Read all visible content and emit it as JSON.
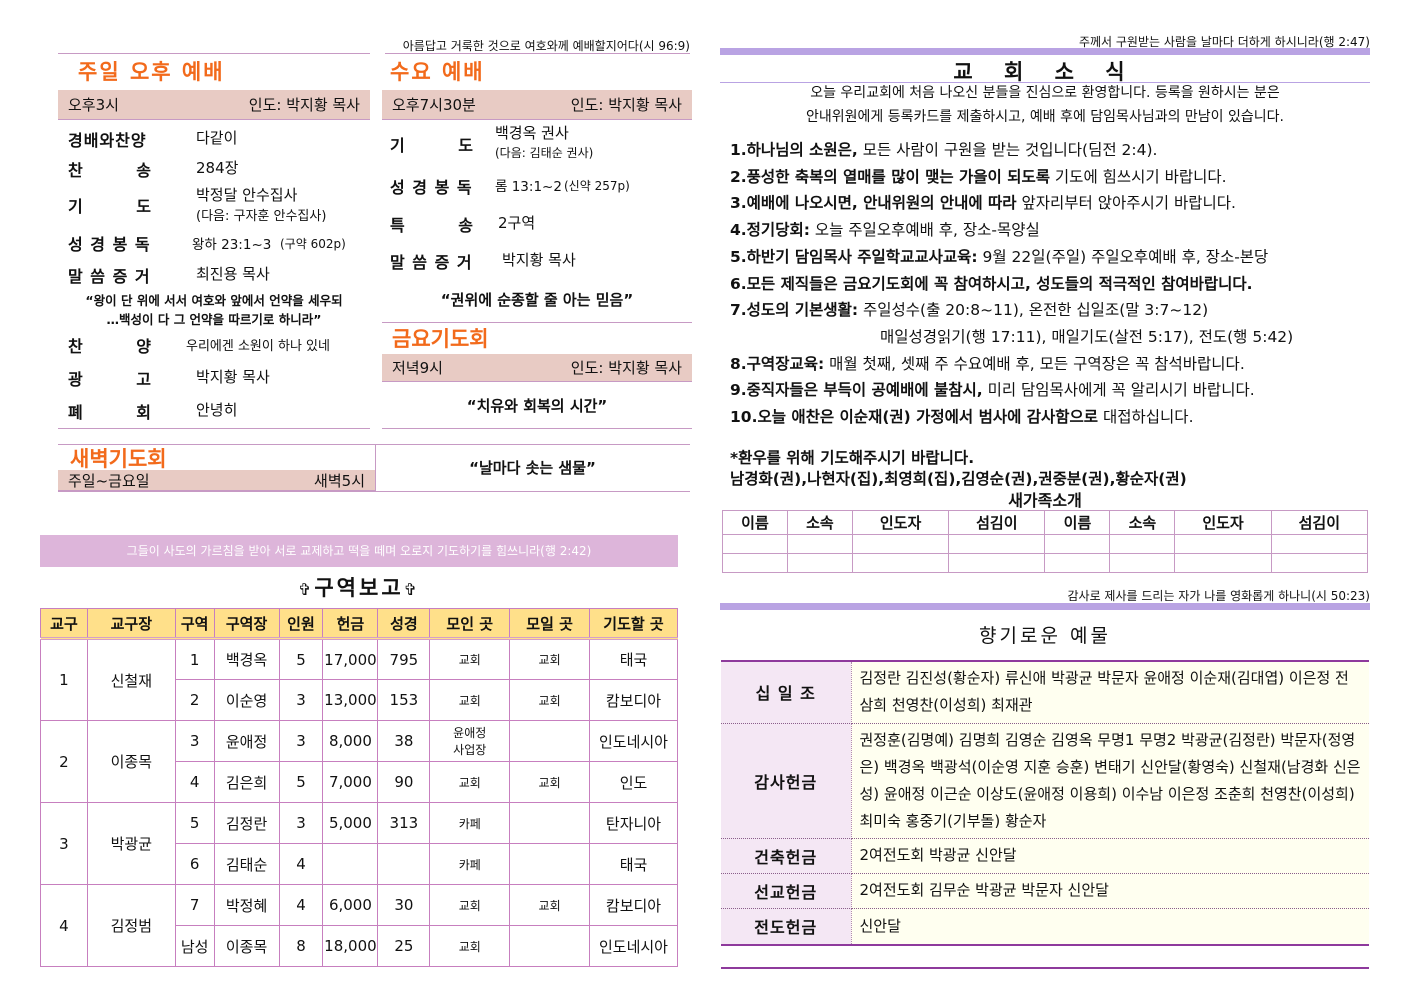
{
  "left": {
    "top_verse": "아름답고 거룩한 것으로 여호와께 예배할지어다(시 96:9)",
    "sunday": {
      "title": "주일 오후 예배",
      "time": "오후3시",
      "leader": "인도: 박지황 목사",
      "rows": [
        {
          "label": "경배와찬양",
          "value": "다같이"
        },
        {
          "label": "찬        송",
          "value": "284장"
        },
        {
          "label": "기        도",
          "value": "박정달 안수집사",
          "sub": "(다음: 구자훈 안수집사)"
        },
        {
          "label": "성 경 봉 독",
          "value": "왕하 23:1~3",
          "sub": "(구약 602p)"
        },
        {
          "label": "말 씀 증 거",
          "value": "최진용 목사"
        },
        {
          "label": "찬        양",
          "value": "우리에겐 소원이 하나 있네"
        },
        {
          "label": "광        고",
          "value": "박지황 목사"
        },
        {
          "label": "폐        회",
          "value": "안녕히"
        }
      ],
      "quote1": "“왕이 단 위에 서서 여호와 앞에서 언약을 세우되",
      "quote2": "…백성이 다 그 언약을 따르기로 하니라”"
    },
    "wednesday": {
      "title": "수요 예배",
      "time": "오후7시30분",
      "leader": "인도: 박지황 목사",
      "rows": [
        {
          "label": "기        도",
          "value": "백경옥 권사",
          "sub": "(다음: 김태순 권사)"
        },
        {
          "label": "성 경 봉 독",
          "value": "롬 13:1~2",
          "sub": "(신약 257p)"
        },
        {
          "label": "특        송",
          "value": "2구역"
        },
        {
          "label": "말 씀 증 거",
          "value": "박지황 목사"
        }
      ],
      "quote": "“권위에 순종할 줄 아는 믿음”"
    },
    "friday": {
      "title": "금요기도회",
      "time": "저녁9시",
      "leader": "인도: 박지황 목사",
      "quote": "“치유와 회복의 시간”"
    },
    "dawn": {
      "title": "새벽기도회",
      "days": "주일~금요일",
      "time": "새벽5시",
      "quote": "“날마다 솟는 샘물”"
    },
    "banner_verse": "그들이 사도의 가르침을 받아 서로 교제하고 떡을 떼며 오로지 기도하기를 힘쓰니라(행 2:42)",
    "cell_report": {
      "title": "구역보고",
      "cross": "✞",
      "headers": [
        "교구",
        "교구장",
        "구역",
        "구역장",
        "인원",
        "헌금",
        "성경",
        "모인 곳",
        "모일 곳",
        "기도할 곳"
      ],
      "groups": [
        {
          "parish": "1",
          "head": "신철재",
          "rows": [
            [
              "1",
              "백경옥",
              "5",
              "17,000",
              "795",
              "교회",
              "교회",
              "태국"
            ],
            [
              "2",
              "이순영",
              "3",
              "13,000",
              "153",
              "교회",
              "교회",
              "캄보디아"
            ]
          ]
        },
        {
          "parish": "2",
          "head": "이종목",
          "rows": [
            [
              "3",
              "윤애정",
              "3",
              "8,000",
              "38",
              "윤애정\n사업장",
              "",
              "인도네시아"
            ],
            [
              "4",
              "김은희",
              "5",
              "7,000",
              "90",
              "교회",
              "교회",
              "인도"
            ]
          ]
        },
        {
          "parish": "3",
          "head": "박광균",
          "rows": [
            [
              "5",
              "김정란",
              "3",
              "5,000",
              "313",
              "카페",
              "",
              "탄자니아"
            ],
            [
              "6",
              "김태순",
              "4",
              "",
              "",
              "카페",
              "",
              "태국"
            ]
          ]
        },
        {
          "parish": "4",
          "head": "김정범",
          "rows": [
            [
              "7",
              "박정혜",
              "4",
              "6,000",
              "30",
              "교회",
              "교회",
              "캄보디아"
            ],
            [
              "남성",
              "이종목",
              "8",
              "18,000",
              "25",
              "교회",
              "",
              "인도네시아"
            ]
          ]
        }
      ]
    }
  },
  "right": {
    "top_verse": "주께서 구원받는 사람을 날마다 더하게 하시니라(행 2:47)",
    "news_title": "교 회 소 식",
    "welcome1": "오늘 우리교회에 처음 나오신 분들을 진심으로 환영합니다. 등록을 원하시는 분은",
    "welcome2": "안내위원에게 등록카드를 제출하시고, 예배 후에 담임목사님과의 만남이 있습니다.",
    "items": [
      {
        "b": "1.하나님의 소원은,",
        "t": " 모든 사람이 구원을 받는 것입니다(딤전 2:4)."
      },
      {
        "b": "2.풍성한 축복의 열매를 많이 맺는 가을이 되도록",
        "t": " 기도에 힘쓰시기 바랍니다."
      },
      {
        "b": "3.예배에 나오시면, 안내위원의 안내에 따라",
        "t": " 앞자리부터 앉아주시기 바랍니다."
      },
      {
        "b": "4.정기당회:",
        "t": " 오늘 주일오후예배 후, 장소-목양실"
      },
      {
        "b": "5.하반기 담임목사 주일학교교사교육:",
        "t": " 9월 22일(주일) 주일오후예배 후, 장소-본당"
      },
      {
        "b": "6.모든 제직들은 금요기도회에 꼭 참여하시고, 성도들의 적극적인 참여바랍니다.",
        "t": ""
      },
      {
        "b": "7.성도의 기본생활:",
        "t": " 주일성수(출 20:8~11), 온전한 십일조(말 3:7~12)"
      },
      {
        "b": "",
        "t": "매일성경읽기(행 17:11), 매일기도(살전 5:17), 전도(행 5:42)"
      },
      {
        "b": "8.구역장교육:",
        "t": " 매월 첫째, 셋째 주 수요예배 후, 모든 구역장은 꼭 참석바랍니다."
      },
      {
        "b": "9.중직자들은 부득이 공예배에 불참시,",
        "t": " 미리 담임목사에게 꼭 알리시기 바랍니다."
      },
      {
        "b": "10.오늘 애찬은 이순재(권) 가정에서 범사에 감사함으로",
        "t": " 대접하십니다."
      }
    ],
    "prayer_title": "*환우를 위해 기도해주시기 바랍니다.",
    "prayer_names": "남경화(권),나현자(집),최영희(집),김영순(권),권중분(권),황순자(권)",
    "newfamily": {
      "title": "새가족소개",
      "headers": [
        "이름",
        "소속",
        "인도자",
        "섬김이",
        "이름",
        "소속",
        "인도자",
        "섬김이"
      ]
    },
    "verse2": "감사로 제사를 드리는 자가 나를 영화롭게 하나니(시 50:23)",
    "offering_title": "향기로운 예물",
    "offerings": [
      {
        "k": "십 일 조",
        "v": "김정란 김진성(황순자) 류신애 박광균 박문자 윤애정 이순재(김대엽) 이은정 전삼희 천영찬(이성희) 최재관"
      },
      {
        "k": "감사헌금",
        "v": "권정훈(김명예) 김명희 김영순 김영옥 무명1 무명2 박광균(김정란) 박문자(정영은) 백경옥 백광석(이순영 지훈 승훈) 변태기 신안달(황영숙) 신철재(남경화 신은성) 윤애정 이근순 이상도(윤애정 이용희) 이수남 이은정 조춘희 천영찬(이성희) 최미숙 홍중기(기부돌) 황순자"
      },
      {
        "k": "건축헌금",
        "v": "2여전도회 박광균 신안달"
      },
      {
        "k": "선교헌금",
        "v": "2여전도회 김무순 박광균 박문자 신안달"
      },
      {
        "k": "전도헌금",
        "v": "신안달"
      }
    ]
  },
  "colors": {
    "heading_orange": "#f26a1b",
    "band": "#e8cbc4",
    "purple_bar": "#b9a3e3",
    "table_header": "#ffe08a",
    "banner": "#ddb5da"
  }
}
